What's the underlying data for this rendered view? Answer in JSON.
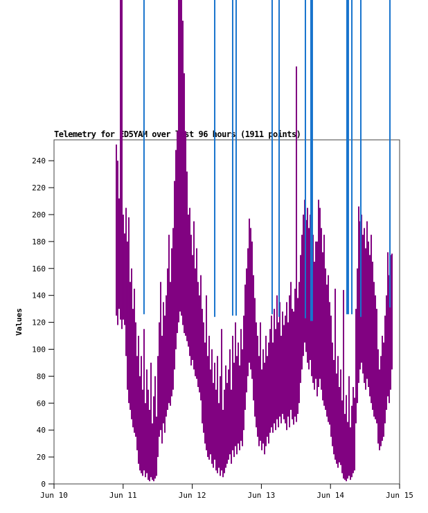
{
  "page": {
    "background": "#ffffff"
  },
  "chart_data": {
    "type": "line",
    "title": "Telemetry for ED5YAM over last 96 hours (1911 points)",
    "point_count": 1911,
    "ylabel": "Values",
    "xlabel": "",
    "grid": false,
    "legend": "none",
    "ylim": [
      0,
      255.5
    ],
    "yticks": [
      0,
      20,
      40,
      60,
      80,
      100,
      120,
      140,
      160,
      180,
      200,
      220,
      240
    ],
    "xlim_days": [
      0,
      5
    ],
    "xticks": [
      {
        "day": 0,
        "label": "Jun 10"
      },
      {
        "day": 1,
        "label": "Jun 11"
      },
      {
        "day": 2,
        "label": "Jun 12"
      },
      {
        "day": 3,
        "label": "Jun 13"
      },
      {
        "day": 4,
        "label": "Jun 14"
      },
      {
        "day": 5,
        "label": "Jun 15"
      }
    ],
    "series": [
      {
        "name": "telemetry-values",
        "color": "#800080",
        "style": "minmax-bars",
        "note": "dense noisy line sampled as [min,max] value buckets; values above 255 run off the top of the plot",
        "x_start_day": 0.902,
        "x_step_day": 0.02004,
        "bars": [
          [
            125,
            252
          ],
          [
            118,
            240
          ],
          [
            130,
            212
          ],
          [
            122,
            370
          ],
          [
            115,
            364
          ],
          [
            122,
            200
          ],
          [
            118,
            186
          ],
          [
            95,
            205
          ],
          [
            70,
            180
          ],
          [
            60,
            198
          ],
          [
            55,
            150
          ],
          [
            48,
            160
          ],
          [
            42,
            130
          ],
          [
            38,
            145
          ],
          [
            35,
            120
          ],
          [
            25,
            95
          ],
          [
            15,
            110
          ],
          [
            10,
            80
          ],
          [
            8,
            95
          ],
          [
            6,
            70
          ],
          [
            10,
            115
          ],
          [
            5,
            60
          ],
          [
            8,
            85
          ],
          [
            3,
            70
          ],
          [
            2,
            55
          ],
          [
            5,
            90
          ],
          [
            3,
            45
          ],
          [
            2,
            65
          ],
          [
            4,
            80
          ],
          [
            6,
            50
          ],
          [
            20,
            95
          ],
          [
            35,
            120
          ],
          [
            40,
            150
          ],
          [
            30,
            110
          ],
          [
            45,
            135
          ],
          [
            38,
            125
          ],
          [
            50,
            140
          ],
          [
            55,
            160
          ],
          [
            60,
            185
          ],
          [
            58,
            150
          ],
          [
            65,
            175
          ],
          [
            70,
            190
          ],
          [
            85,
            225
          ],
          [
            100,
            248
          ],
          [
            112,
            262
          ],
          [
            120,
            368
          ],
          [
            128,
            380
          ],
          [
            125,
            372
          ],
          [
            118,
            344
          ],
          [
            112,
            305
          ],
          [
            110,
            262
          ],
          [
            106,
            232
          ],
          [
            102,
            200
          ],
          [
            95,
            205
          ],
          [
            88,
            185
          ],
          [
            92,
            170
          ],
          [
            85,
            195
          ],
          [
            80,
            160
          ],
          [
            78,
            175
          ],
          [
            72,
            150
          ],
          [
            68,
            140
          ],
          [
            62,
            155
          ],
          [
            45,
            130
          ],
          [
            38,
            120
          ],
          [
            30,
            105
          ],
          [
            25,
            140
          ],
          [
            20,
            95
          ],
          [
            18,
            110
          ],
          [
            22,
            85
          ],
          [
            15,
            100
          ],
          [
            12,
            75
          ],
          [
            18,
            90
          ],
          [
            10,
            70
          ],
          [
            8,
            95
          ],
          [
            12,
            60
          ],
          [
            6,
            80
          ],
          [
            10,
            115
          ],
          [
            5,
            55
          ],
          [
            8,
            70
          ],
          [
            12,
            88
          ],
          [
            15,
            75
          ],
          [
            18,
            85
          ],
          [
            22,
            100
          ],
          [
            15,
            70
          ],
          [
            25,
            110
          ],
          [
            20,
            90
          ],
          [
            28,
            120
          ],
          [
            22,
            95
          ],
          [
            30,
            105
          ],
          [
            25,
            88
          ],
          [
            32,
            115
          ],
          [
            28,
            100
          ],
          [
            40,
            125
          ],
          [
            55,
            148
          ],
          [
            68,
            160
          ],
          [
            80,
            175
          ],
          [
            90,
            197
          ],
          [
            85,
            190
          ],
          [
            78,
            180
          ],
          [
            62,
            155
          ],
          [
            50,
            138
          ],
          [
            42,
            120
          ],
          [
            35,
            110
          ],
          [
            28,
            95
          ],
          [
            32,
            120
          ],
          [
            25,
            85
          ],
          [
            30,
            100
          ],
          [
            22,
            90
          ],
          [
            28,
            110
          ],
          [
            35,
            95
          ],
          [
            30,
            105
          ],
          [
            38,
            115
          ],
          [
            42,
            125
          ],
          [
            38,
            105
          ],
          [
            45,
            130
          ],
          [
            40,
            115
          ],
          [
            48,
            140
          ],
          [
            42,
            120
          ],
          [
            50,
            135
          ],
          [
            45,
            110
          ],
          [
            52,
            128
          ],
          [
            48,
            118
          ],
          [
            45,
            125
          ],
          [
            40,
            135
          ],
          [
            50,
            120
          ],
          [
            42,
            140
          ],
          [
            55,
            150
          ],
          [
            48,
            130
          ],
          [
            44,
            128
          ],
          [
            50,
            145
          ],
          [
            46,
            310
          ],
          [
            52,
            138
          ],
          [
            60,
            150
          ],
          [
            75,
            170
          ],
          [
            85,
            185
          ],
          [
            95,
            200
          ],
          [
            105,
            211
          ],
          [
            98,
            196
          ],
          [
            90,
            205
          ],
          [
            85,
            190
          ],
          [
            92,
            200
          ],
          [
            80,
            175
          ],
          [
            75,
            185
          ],
          [
            70,
            165
          ],
          [
            78,
            180
          ],
          [
            65,
            180
          ],
          [
            72,
            211
          ],
          [
            78,
            205
          ],
          [
            70,
            190
          ],
          [
            62,
            172
          ],
          [
            58,
            185
          ],
          [
            55,
            160
          ],
          [
            50,
            148
          ],
          [
            46,
            155
          ],
          [
            44,
            135
          ],
          [
            35,
            125
          ],
          [
            28,
            105
          ],
          [
            22,
            92
          ],
          [
            18,
            145
          ],
          [
            15,
            82
          ],
          [
            12,
            95
          ],
          [
            16,
            72
          ],
          [
            14,
            85
          ],
          [
            8,
            62
          ],
          [
            4,
            144
          ],
          [
            3,
            52
          ],
          [
            2,
            66
          ],
          [
            4,
            46
          ],
          [
            6,
            80
          ],
          [
            3,
            42
          ],
          [
            5,
            58
          ],
          [
            8,
            72
          ],
          [
            10,
            64
          ],
          [
            45,
            130
          ],
          [
            60,
            160
          ],
          [
            75,
            206
          ],
          [
            85,
            195
          ],
          [
            90,
            200
          ],
          [
            82,
            185
          ],
          [
            75,
            190
          ],
          [
            70,
            175
          ],
          [
            78,
            195
          ],
          [
            72,
            180
          ],
          [
            65,
            170
          ],
          [
            60,
            185
          ],
          [
            55,
            165
          ],
          [
            50,
            150
          ],
          [
            48,
            140
          ],
          [
            45,
            130
          ],
          [
            30,
            100
          ],
          [
            25,
            85
          ],
          [
            28,
            95
          ],
          [
            32,
            110
          ],
          [
            35,
            105
          ],
          [
            45,
            125
          ],
          [
            55,
            140
          ],
          [
            65,
            172
          ],
          [
            60,
            155
          ],
          [
            70,
            170
          ],
          [
            85,
            171
          ]
        ]
      },
      {
        "name": "off-scale-spikes",
        "color": "#1874CD",
        "style": "vertical-lines",
        "note": "spikes running off the top of the image down to the listed value; [day, bottom_value, width_px]",
        "lines": [
          [
            1.302,
            126,
            2
          ],
          [
            2.325,
            124,
            2
          ],
          [
            2.585,
            125,
            2
          ],
          [
            2.635,
            125,
            2
          ],
          [
            3.156,
            126,
            2
          ],
          [
            3.257,
            124,
            2
          ],
          [
            3.637,
            123,
            2
          ],
          [
            3.727,
            121,
            4
          ],
          [
            4.248,
            126,
            4
          ],
          [
            4.309,
            126,
            2
          ],
          [
            4.439,
            124,
            2
          ],
          [
            4.86,
            131,
            2
          ]
        ]
      }
    ]
  }
}
